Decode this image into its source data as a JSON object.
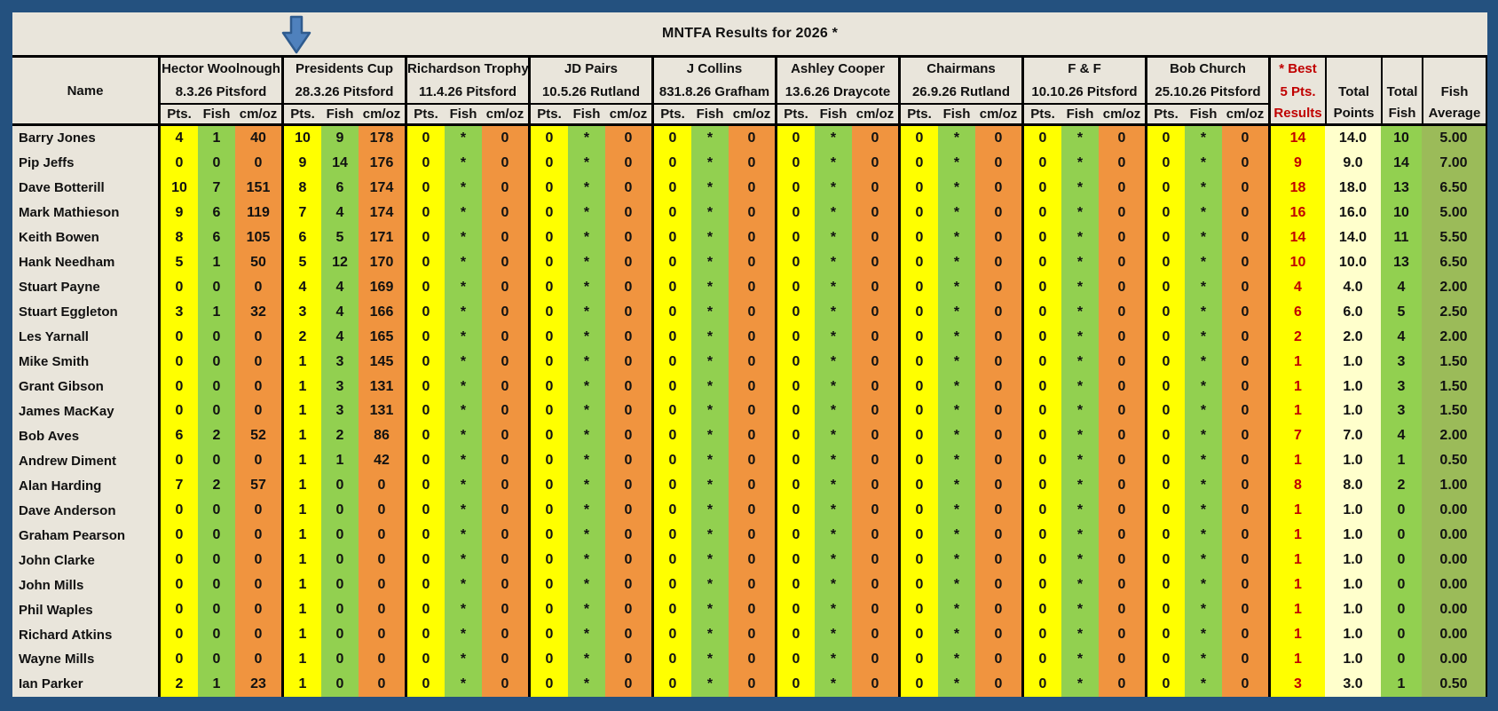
{
  "title": "MNTFA Results for 2026 *",
  "colors": {
    "frame_blue": "#24517F",
    "sheet_background": "#E9E5DB",
    "points_yellow": "#FFFF00",
    "fish_green": "#92D050",
    "cmoz_orange": "#F0943F",
    "total_points_pale_yellow": "#FFFFCC",
    "fish_average_olive": "#9BBB59",
    "best_results_red": "#C00000",
    "arrow_blue": "#4F81BD"
  },
  "icons": {
    "down_arrow": "down-arrow-icon"
  },
  "header": {
    "name_label": "Name",
    "sub_labels": [
      "Pts.",
      "Fish",
      "cm/oz"
    ],
    "best_col_lines": [
      "* Best",
      "5 Pts.",
      "Results"
    ],
    "total_points_lines": [
      "",
      "Total",
      "Points"
    ],
    "total_fish_lines": [
      "",
      "Total",
      "Fish"
    ],
    "fish_average_lines": [
      "",
      "Fish",
      "Average"
    ]
  },
  "competitions": [
    {
      "name": "Hector Woolnough",
      "date": "8.3.26 Pitsford"
    },
    {
      "name": "Presidents Cup",
      "date": "28.3.26 Pitsford"
    },
    {
      "name": "Richardson Trophy",
      "date": "11.4.26 Pitsford"
    },
    {
      "name": "JD Pairs",
      "date": "10.5.26 Rutland"
    },
    {
      "name": "J Collins",
      "date": "831.8.26 Grafham"
    },
    {
      "name": "Ashley Cooper",
      "date": "13.6.26 Draycote"
    },
    {
      "name": "Chairmans",
      "date": "26.9.26 Rutland"
    },
    {
      "name": "F & F",
      "date": "10.10.26 Pitsford"
    },
    {
      "name": "Bob Church",
      "date": "25.10.26 Pitsford"
    }
  ],
  "rows": [
    {
      "name": "Barry Jones",
      "results": [
        [
          4,
          1,
          40
        ],
        [
          10,
          9,
          178
        ],
        [
          0,
          "*",
          0
        ],
        [
          0,
          "*",
          0
        ],
        [
          0,
          "*",
          0
        ],
        [
          0,
          "*",
          0
        ],
        [
          0,
          "*",
          0
        ],
        [
          0,
          "*",
          0
        ],
        [
          0,
          "*",
          0
        ]
      ],
      "best": 14,
      "total_points": "14.0",
      "total_fish": 10,
      "fish_average": "5.00"
    },
    {
      "name": "Pip Jeffs",
      "results": [
        [
          0,
          0,
          0
        ],
        [
          9,
          14,
          176
        ],
        [
          0,
          "*",
          0
        ],
        [
          0,
          "*",
          0
        ],
        [
          0,
          "*",
          0
        ],
        [
          0,
          "*",
          0
        ],
        [
          0,
          "*",
          0
        ],
        [
          0,
          "*",
          0
        ],
        [
          0,
          "*",
          0
        ]
      ],
      "best": 9,
      "total_points": "9.0",
      "total_fish": 14,
      "fish_average": "7.00"
    },
    {
      "name": "Dave Botterill",
      "results": [
        [
          10,
          7,
          151
        ],
        [
          8,
          6,
          174
        ],
        [
          0,
          "*",
          0
        ],
        [
          0,
          "*",
          0
        ],
        [
          0,
          "*",
          0
        ],
        [
          0,
          "*",
          0
        ],
        [
          0,
          "*",
          0
        ],
        [
          0,
          "*",
          0
        ],
        [
          0,
          "*",
          0
        ]
      ],
      "best": 18,
      "total_points": "18.0",
      "total_fish": 13,
      "fish_average": "6.50"
    },
    {
      "name": "Mark Mathieson",
      "results": [
        [
          9,
          6,
          119
        ],
        [
          7,
          4,
          174
        ],
        [
          0,
          "*",
          0
        ],
        [
          0,
          "*",
          0
        ],
        [
          0,
          "*",
          0
        ],
        [
          0,
          "*",
          0
        ],
        [
          0,
          "*",
          0
        ],
        [
          0,
          "*",
          0
        ],
        [
          0,
          "*",
          0
        ]
      ],
      "best": 16,
      "total_points": "16.0",
      "total_fish": 10,
      "fish_average": "5.00"
    },
    {
      "name": "Keith Bowen",
      "results": [
        [
          8,
          6,
          105
        ],
        [
          6,
          5,
          171
        ],
        [
          0,
          "*",
          0
        ],
        [
          0,
          "*",
          0
        ],
        [
          0,
          "*",
          0
        ],
        [
          0,
          "*",
          0
        ],
        [
          0,
          "*",
          0
        ],
        [
          0,
          "*",
          0
        ],
        [
          0,
          "*",
          0
        ]
      ],
      "best": 14,
      "total_points": "14.0",
      "total_fish": 11,
      "fish_average": "5.50"
    },
    {
      "name": "Hank Needham",
      "results": [
        [
          5,
          1,
          50
        ],
        [
          5,
          12,
          170
        ],
        [
          0,
          "*",
          0
        ],
        [
          0,
          "*",
          0
        ],
        [
          0,
          "*",
          0
        ],
        [
          0,
          "*",
          0
        ],
        [
          0,
          "*",
          0
        ],
        [
          0,
          "*",
          0
        ],
        [
          0,
          "*",
          0
        ]
      ],
      "best": 10,
      "total_points": "10.0",
      "total_fish": 13,
      "fish_average": "6.50"
    },
    {
      "name": "Stuart Payne",
      "results": [
        [
          0,
          0,
          0
        ],
        [
          4,
          4,
          169
        ],
        [
          0,
          "*",
          0
        ],
        [
          0,
          "*",
          0
        ],
        [
          0,
          "*",
          0
        ],
        [
          0,
          "*",
          0
        ],
        [
          0,
          "*",
          0
        ],
        [
          0,
          "*",
          0
        ],
        [
          0,
          "*",
          0
        ]
      ],
      "best": 4,
      "total_points": "4.0",
      "total_fish": 4,
      "fish_average": "2.00"
    },
    {
      "name": "Stuart Eggleton",
      "results": [
        [
          3,
          1,
          32
        ],
        [
          3,
          4,
          166
        ],
        [
          0,
          "*",
          0
        ],
        [
          0,
          "*",
          0
        ],
        [
          0,
          "*",
          0
        ],
        [
          0,
          "*",
          0
        ],
        [
          0,
          "*",
          0
        ],
        [
          0,
          "*",
          0
        ],
        [
          0,
          "*",
          0
        ]
      ],
      "best": 6,
      "total_points": "6.0",
      "total_fish": 5,
      "fish_average": "2.50"
    },
    {
      "name": "Les Yarnall",
      "results": [
        [
          0,
          0,
          0
        ],
        [
          2,
          4,
          165
        ],
        [
          0,
          "*",
          0
        ],
        [
          0,
          "*",
          0
        ],
        [
          0,
          "*",
          0
        ],
        [
          0,
          "*",
          0
        ],
        [
          0,
          "*",
          0
        ],
        [
          0,
          "*",
          0
        ],
        [
          0,
          "*",
          0
        ]
      ],
      "best": 2,
      "total_points": "2.0",
      "total_fish": 4,
      "fish_average": "2.00"
    },
    {
      "name": "Mike Smith",
      "results": [
        [
          0,
          0,
          0
        ],
        [
          1,
          3,
          145
        ],
        [
          0,
          "*",
          0
        ],
        [
          0,
          "*",
          0
        ],
        [
          0,
          "*",
          0
        ],
        [
          0,
          "*",
          0
        ],
        [
          0,
          "*",
          0
        ],
        [
          0,
          "*",
          0
        ],
        [
          0,
          "*",
          0
        ]
      ],
      "best": 1,
      "total_points": "1.0",
      "total_fish": 3,
      "fish_average": "1.50"
    },
    {
      "name": "Grant Gibson",
      "results": [
        [
          0,
          0,
          0
        ],
        [
          1,
          3,
          131
        ],
        [
          0,
          "*",
          0
        ],
        [
          0,
          "*",
          0
        ],
        [
          0,
          "*",
          0
        ],
        [
          0,
          "*",
          0
        ],
        [
          0,
          "*",
          0
        ],
        [
          0,
          "*",
          0
        ],
        [
          0,
          "*",
          0
        ]
      ],
      "best": 1,
      "total_points": "1.0",
      "total_fish": 3,
      "fish_average": "1.50"
    },
    {
      "name": "James MacKay",
      "results": [
        [
          0,
          0,
          0
        ],
        [
          1,
          3,
          131
        ],
        [
          0,
          "*",
          0
        ],
        [
          0,
          "*",
          0
        ],
        [
          0,
          "*",
          0
        ],
        [
          0,
          "*",
          0
        ],
        [
          0,
          "*",
          0
        ],
        [
          0,
          "*",
          0
        ],
        [
          0,
          "*",
          0
        ]
      ],
      "best": 1,
      "total_points": "1.0",
      "total_fish": 3,
      "fish_average": "1.50"
    },
    {
      "name": "Bob Aves",
      "results": [
        [
          6,
          2,
          52
        ],
        [
          1,
          2,
          86
        ],
        [
          0,
          "*",
          0
        ],
        [
          0,
          "*",
          0
        ],
        [
          0,
          "*",
          0
        ],
        [
          0,
          "*",
          0
        ],
        [
          0,
          "*",
          0
        ],
        [
          0,
          "*",
          0
        ],
        [
          0,
          "*",
          0
        ]
      ],
      "best": 7,
      "total_points": "7.0",
      "total_fish": 4,
      "fish_average": "2.00"
    },
    {
      "name": "Andrew Diment",
      "results": [
        [
          0,
          0,
          0
        ],
        [
          1,
          1,
          42
        ],
        [
          0,
          "*",
          0
        ],
        [
          0,
          "*",
          0
        ],
        [
          0,
          "*",
          0
        ],
        [
          0,
          "*",
          0
        ],
        [
          0,
          "*",
          0
        ],
        [
          0,
          "*",
          0
        ],
        [
          0,
          "*",
          0
        ]
      ],
      "best": 1,
      "total_points": "1.0",
      "total_fish": 1,
      "fish_average": "0.50"
    },
    {
      "name": "Alan Harding",
      "results": [
        [
          7,
          2,
          57
        ],
        [
          1,
          0,
          0
        ],
        [
          0,
          "*",
          0
        ],
        [
          0,
          "*",
          0
        ],
        [
          0,
          "*",
          0
        ],
        [
          0,
          "*",
          0
        ],
        [
          0,
          "*",
          0
        ],
        [
          0,
          "*",
          0
        ],
        [
          0,
          "*",
          0
        ]
      ],
      "best": 8,
      "total_points": "8.0",
      "total_fish": 2,
      "fish_average": "1.00"
    },
    {
      "name": "Dave Anderson",
      "results": [
        [
          0,
          0,
          0
        ],
        [
          1,
          0,
          0
        ],
        [
          0,
          "*",
          0
        ],
        [
          0,
          "*",
          0
        ],
        [
          0,
          "*",
          0
        ],
        [
          0,
          "*",
          0
        ],
        [
          0,
          "*",
          0
        ],
        [
          0,
          "*",
          0
        ],
        [
          0,
          "*",
          0
        ]
      ],
      "best": 1,
      "total_points": "1.0",
      "total_fish": 0,
      "fish_average": "0.00"
    },
    {
      "name": "Graham Pearson",
      "results": [
        [
          0,
          0,
          0
        ],
        [
          1,
          0,
          0
        ],
        [
          0,
          "*",
          0
        ],
        [
          0,
          "*",
          0
        ],
        [
          0,
          "*",
          0
        ],
        [
          0,
          "*",
          0
        ],
        [
          0,
          "*",
          0
        ],
        [
          0,
          "*",
          0
        ],
        [
          0,
          "*",
          0
        ]
      ],
      "best": 1,
      "total_points": "1.0",
      "total_fish": 0,
      "fish_average": "0.00"
    },
    {
      "name": "John Clarke",
      "results": [
        [
          0,
          0,
          0
        ],
        [
          1,
          0,
          0
        ],
        [
          0,
          "*",
          0
        ],
        [
          0,
          "*",
          0
        ],
        [
          0,
          "*",
          0
        ],
        [
          0,
          "*",
          0
        ],
        [
          0,
          "*",
          0
        ],
        [
          0,
          "*",
          0
        ],
        [
          0,
          "*",
          0
        ]
      ],
      "best": 1,
      "total_points": "1.0",
      "total_fish": 0,
      "fish_average": "0.00"
    },
    {
      "name": "John Mills",
      "results": [
        [
          0,
          0,
          0
        ],
        [
          1,
          0,
          0
        ],
        [
          0,
          "*",
          0
        ],
        [
          0,
          "*",
          0
        ],
        [
          0,
          "*",
          0
        ],
        [
          0,
          "*",
          0
        ],
        [
          0,
          "*",
          0
        ],
        [
          0,
          "*",
          0
        ],
        [
          0,
          "*",
          0
        ]
      ],
      "best": 1,
      "total_points": "1.0",
      "total_fish": 0,
      "fish_average": "0.00"
    },
    {
      "name": "Phil Waples",
      "results": [
        [
          0,
          0,
          0
        ],
        [
          1,
          0,
          0
        ],
        [
          0,
          "*",
          0
        ],
        [
          0,
          "*",
          0
        ],
        [
          0,
          "*",
          0
        ],
        [
          0,
          "*",
          0
        ],
        [
          0,
          "*",
          0
        ],
        [
          0,
          "*",
          0
        ],
        [
          0,
          "*",
          0
        ]
      ],
      "best": 1,
      "total_points": "1.0",
      "total_fish": 0,
      "fish_average": "0.00"
    },
    {
      "name": "Richard Atkins",
      "results": [
        [
          0,
          0,
          0
        ],
        [
          1,
          0,
          0
        ],
        [
          0,
          "*",
          0
        ],
        [
          0,
          "*",
          0
        ],
        [
          0,
          "*",
          0
        ],
        [
          0,
          "*",
          0
        ],
        [
          0,
          "*",
          0
        ],
        [
          0,
          "*",
          0
        ],
        [
          0,
          "*",
          0
        ]
      ],
      "best": 1,
      "total_points": "1.0",
      "total_fish": 0,
      "fish_average": "0.00"
    },
    {
      "name": "Wayne Mills",
      "results": [
        [
          0,
          0,
          0
        ],
        [
          1,
          0,
          0
        ],
        [
          0,
          "*",
          0
        ],
        [
          0,
          "*",
          0
        ],
        [
          0,
          "*",
          0
        ],
        [
          0,
          "*",
          0
        ],
        [
          0,
          "*",
          0
        ],
        [
          0,
          "*",
          0
        ],
        [
          0,
          "*",
          0
        ]
      ],
      "best": 1,
      "total_points": "1.0",
      "total_fish": 0,
      "fish_average": "0.00"
    },
    {
      "name": "Ian Parker",
      "results": [
        [
          2,
          1,
          23
        ],
        [
          1,
          0,
          0
        ],
        [
          0,
          "*",
          0
        ],
        [
          0,
          "*",
          0
        ],
        [
          0,
          "*",
          0
        ],
        [
          0,
          "*",
          0
        ],
        [
          0,
          "*",
          0
        ],
        [
          0,
          "*",
          0
        ],
        [
          0,
          "*",
          0
        ]
      ],
      "best": 3,
      "total_points": "3.0",
      "total_fish": 1,
      "fish_average": "0.50"
    }
  ]
}
